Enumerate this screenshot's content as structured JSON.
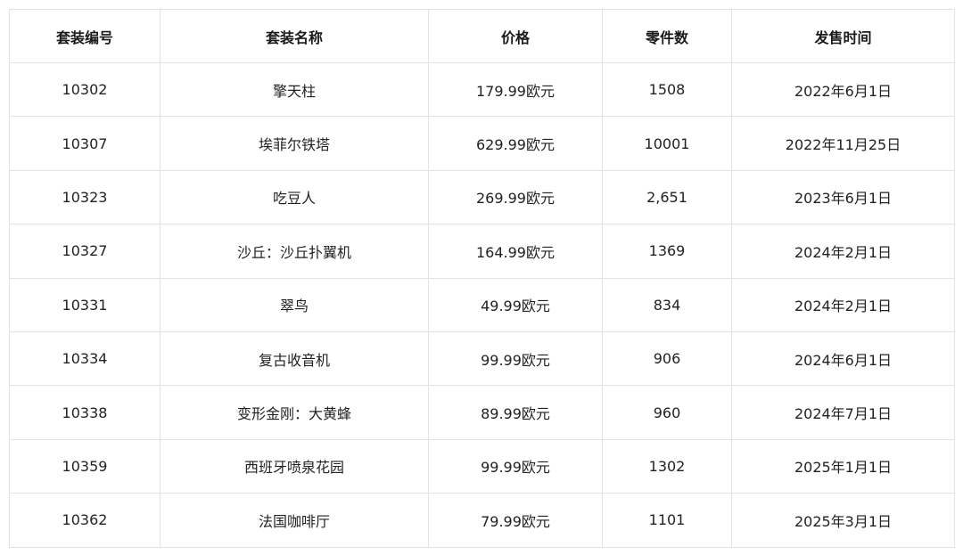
{
  "table": {
    "headers": [
      "套装编号",
      "套装名称",
      "价格",
      "零件数",
      "发售时间"
    ],
    "rows": [
      [
        "10302",
        "擎天柱",
        "179.99欧元",
        "1508",
        "2022年6月1日"
      ],
      [
        "10307",
        "埃菲尔铁塔",
        "629.99欧元",
        "10001",
        "2022年11月25日"
      ],
      [
        "10323",
        "吃豆人",
        "269.99欧元",
        "2,651",
        "2023年6月1日"
      ],
      [
        "10327",
        "沙丘：沙丘扑翼机",
        "164.99欧元",
        "1369",
        "2024年2月1日"
      ],
      [
        "10331",
        "翠鸟",
        "49.99欧元",
        "834",
        "2024年2月1日"
      ],
      [
        "10334",
        "复古收音机",
        "99.99欧元",
        "906",
        "2024年6月1日"
      ],
      [
        "10338",
        "变形金刚：大黄蜂",
        "89.99欧元",
        "960",
        "2024年7月1日"
      ],
      [
        "10359",
        "西班牙喷泉花园",
        "99.99欧元",
        "1302",
        "2025年1月1日"
      ],
      [
        "10362",
        "法国咖啡厅",
        "79.99欧元",
        "1101",
        "2025年3月1日"
      ]
    ]
  }
}
